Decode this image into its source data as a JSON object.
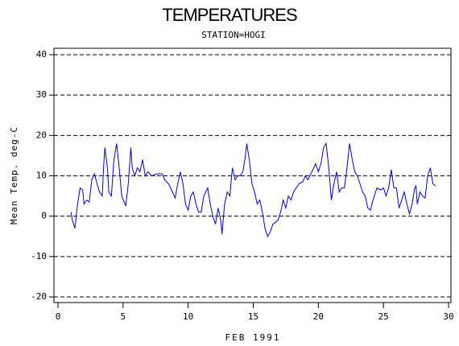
{
  "chart_data": {
    "type": "line",
    "title": "TEMPERATURES",
    "subtitle": "STATION=HOGI",
    "x_label": "FEB 1991",
    "y_label": "Mean Temp. deg-C",
    "xlim": [
      0,
      30
    ],
    "xticks": [
      0,
      5,
      10,
      15,
      20,
      25,
      30
    ],
    "ylim": [
      -20,
      40
    ],
    "yticks": [
      -20,
      -10,
      0,
      10,
      20,
      30,
      40
    ],
    "grid": true,
    "x": [
      1.0,
      1.1,
      1.3,
      1.5,
      1.7,
      1.9,
      2.0,
      2.2,
      2.4,
      2.6,
      2.8,
      3.0,
      3.2,
      3.4,
      3.5,
      3.6,
      3.8,
      3.9,
      4.1,
      4.3,
      4.5,
      4.7,
      4.9,
      5.2,
      5.4,
      5.6,
      5.7,
      5.9,
      6.1,
      6.3,
      6.5,
      6.7,
      6.9,
      7.2,
      7.6,
      8.0,
      8.2,
      8.5,
      8.8,
      9.0,
      9.2,
      9.4,
      9.6,
      9.8,
      10.0,
      10.2,
      10.4,
      10.6,
      10.8,
      11.0,
      11.2,
      11.5,
      11.7,
      11.9,
      12.1,
      12.3,
      12.5,
      12.6,
      12.8,
      13.0,
      13.2,
      13.4,
      13.6,
      13.8,
      14.0,
      14.2,
      14.4,
      14.5,
      14.7,
      14.9,
      15.1,
      15.3,
      15.5,
      15.7,
      15.9,
      16.1,
      16.3,
      16.5,
      16.7,
      16.9,
      17.1,
      17.3,
      17.5,
      17.7,
      17.9,
      18.1,
      18.3,
      18.5,
      18.8,
      19.0,
      19.2,
      19.5,
      19.8,
      20.0,
      20.2,
      20.4,
      20.6,
      20.8,
      21.0,
      21.2,
      21.4,
      21.6,
      21.8,
      22.0,
      22.2,
      22.4,
      22.6,
      22.8,
      23.0,
      23.2,
      23.4,
      23.6,
      23.8,
      24.0,
      24.2,
      24.5,
      24.8,
      25.0,
      25.2,
      25.4,
      25.6,
      25.8,
      26.0,
      26.2,
      26.4,
      26.6,
      26.8,
      27.0,
      27.2,
      27.4,
      27.5,
      27.6,
      27.8,
      28.0,
      28.2,
      28.4,
      28.6,
      28.8,
      29.0
    ],
    "series": [
      {
        "color": "#0000cc",
        "values": [
          1,
          -1,
          -3,
          3,
          7,
          6.5,
          3,
          4,
          3.5,
          9,
          10.5,
          8,
          6,
          5,
          12,
          17,
          12,
          6,
          5,
          14,
          18,
          12,
          5,
          2.5,
          8,
          17,
          12,
          10,
          12,
          11,
          14,
          10,
          11,
          10,
          10.5,
          10.5,
          9,
          8,
          6,
          4.5,
          8,
          11,
          8,
          3,
          1.5,
          5,
          6,
          3,
          1,
          1,
          5,
          7,
          3,
          0,
          -2,
          2,
          -1,
          -4.5,
          3,
          6,
          5,
          12,
          9,
          10,
          10,
          11,
          15,
          18,
          14,
          8,
          6,
          3,
          4,
          1,
          -3,
          -5,
          -4,
          -2,
          -1.5,
          -1,
          1,
          4,
          2,
          5,
          4,
          6,
          7,
          8,
          8.5,
          10,
          9,
          11,
          13,
          11,
          13,
          17,
          18,
          12,
          4,
          8,
          11,
          6,
          7,
          7,
          12,
          18,
          14,
          11,
          10,
          8,
          6,
          5,
          2,
          1.5,
          4,
          7,
          6.5,
          7,
          5,
          7,
          11.5,
          7,
          7,
          2,
          4,
          6,
          3,
          0.5,
          3,
          7,
          7.5,
          3,
          6,
          5,
          4.5,
          10,
          12,
          8,
          7.5
        ]
      }
    ]
  }
}
